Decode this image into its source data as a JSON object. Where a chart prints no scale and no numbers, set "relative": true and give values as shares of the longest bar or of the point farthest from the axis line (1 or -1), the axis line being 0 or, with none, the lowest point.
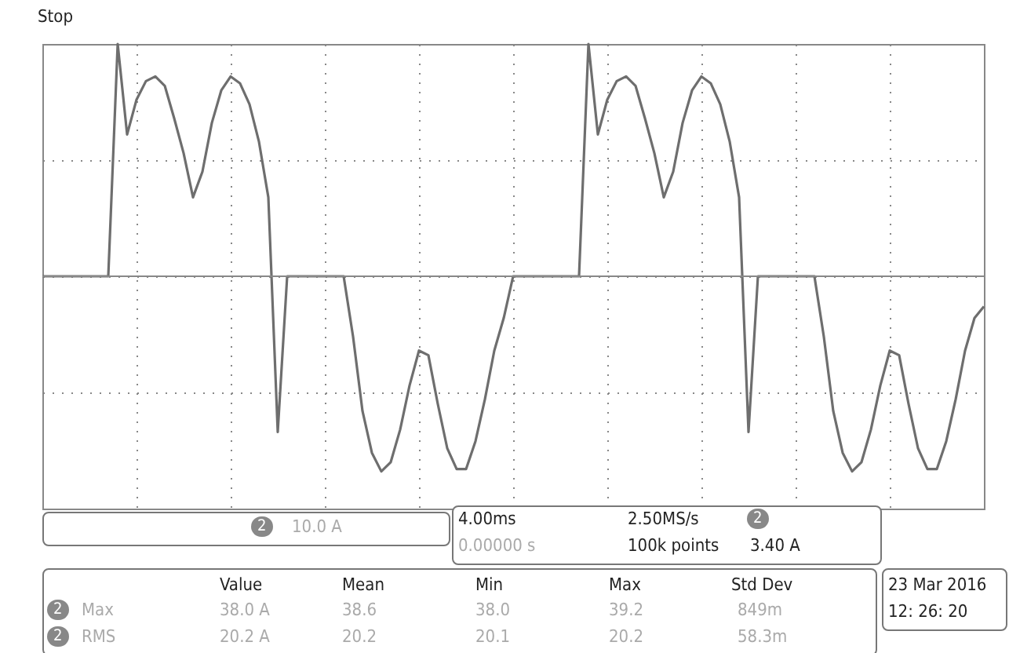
{
  "chart_data": {
    "type": "line",
    "relative": true,
    "grid": true,
    "tick_labels": false,
    "categories": [
      null,
      null,
      null,
      null,
      null,
      null,
      null,
      null,
      null,
      null,
      null,
      null,
      null,
      null,
      null,
      null,
      null,
      null,
      null,
      null,
      null,
      null,
      null,
      null,
      null,
      null,
      null,
      null,
      null,
      null,
      null,
      null,
      null,
      null,
      null,
      null,
      null,
      null,
      null,
      null,
      null,
      null,
      null,
      null,
      null,
      null,
      null,
      null,
      null,
      null,
      null,
      null,
      null,
      null,
      null,
      null,
      null,
      null,
      null,
      null,
      null,
      null,
      null,
      null,
      null,
      null,
      null,
      null,
      null,
      null,
      null,
      null,
      null,
      null,
      null,
      null,
      null,
      null,
      null,
      null,
      null,
      null,
      null,
      null,
      null,
      null,
      null,
      null,
      null,
      null,
      null,
      null,
      null,
      null,
      null,
      null,
      null,
      null,
      null,
      null,
      null
    ],
    "series": [
      {
        "color": "#6e6e6e",
        "values": [
          0,
          0,
          0,
          0,
          0,
          0,
          0,
          0,
          1,
          0.61,
          0.76,
          0.84,
          0.86,
          0.82,
          0.68,
          0.53,
          0.34,
          0.45,
          0.66,
          0.8,
          0.86,
          0.83,
          0.74,
          0.58,
          0.34,
          -0.67,
          0,
          0,
          0,
          0,
          0,
          0,
          0,
          -0.26,
          -0.58,
          -0.76,
          -0.84,
          -0.8,
          -0.66,
          -0.47,
          -0.32,
          -0.34,
          -0.55,
          -0.74,
          -0.83,
          -0.83,
          -0.71,
          -0.53,
          -0.32,
          -0.18,
          0,
          0,
          0,
          0,
          0,
          0,
          0,
          0,
          1,
          0.61,
          0.76,
          0.84,
          0.86,
          0.82,
          0.68,
          0.53,
          0.34,
          0.45,
          0.66,
          0.8,
          0.86,
          0.83,
          0.74,
          0.58,
          0.34,
          -0.67,
          0,
          0,
          0,
          0,
          0,
          0,
          0,
          -0.26,
          -0.58,
          -0.76,
          -0.84,
          -0.8,
          -0.66,
          -0.47,
          -0.32,
          -0.34,
          -0.55,
          -0.74,
          -0.83,
          -0.83,
          -0.71,
          -0.53,
          -0.32,
          -0.18,
          -0.13
        ]
      }
    ],
    "annotations": [
      "Stop",
      "2",
      "10.0 A",
      "4.00ms",
      "2.50MS/s",
      "2",
      "0.00000 s",
      "100k points",
      "3.40 A",
      "Value",
      "Mean",
      "Min",
      "Max",
      "Std Dev",
      "2",
      "Max",
      "38.0 A",
      "38.6",
      "38.0",
      "39.2",
      "849m",
      "2",
      "RMS",
      "20.2 A",
      "20.2",
      "20.1",
      "20.2",
      "58.3m",
      "23 Mar  2016",
      "12: 26: 20"
    ]
  }
}
